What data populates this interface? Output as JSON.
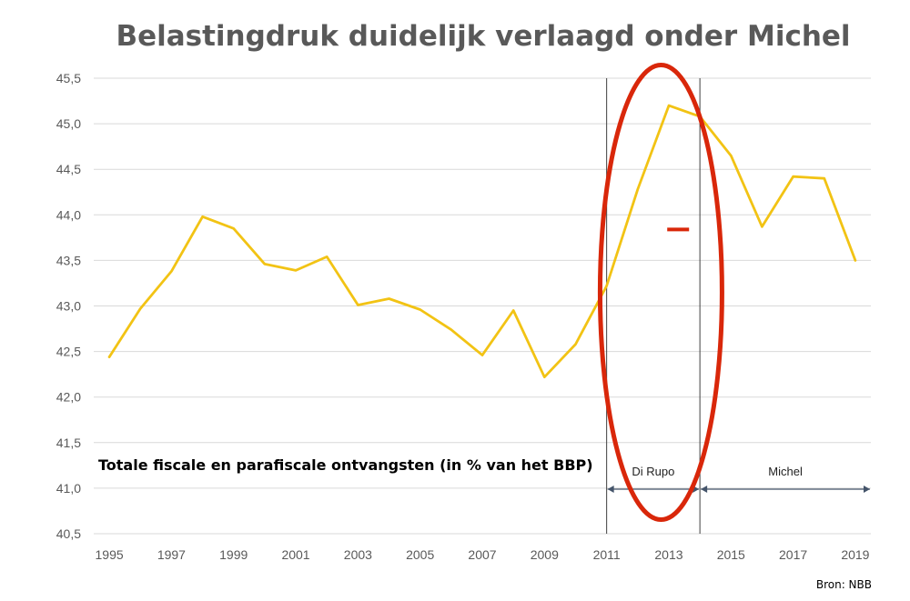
{
  "chart_data": {
    "type": "line",
    "title": "Belastingdruk duidelijk verlaagd onder Michel",
    "annotation": "Totale fiscale en parafiscale ontvangsten (in % van het BBP)",
    "source": "Bron: NBB",
    "xlabel": "",
    "ylabel": "",
    "ylim": [
      40.5,
      45.5
    ],
    "yticks": [
      "40,5",
      "41,0",
      "41,5",
      "42,0",
      "42,5",
      "43,0",
      "43,5",
      "44,0",
      "44,5",
      "45,0",
      "45,5"
    ],
    "xlim": [
      1995,
      2019
    ],
    "xticks": [
      "1995",
      "1997",
      "1999",
      "2001",
      "2003",
      "2005",
      "2007",
      "2009",
      "2011",
      "2013",
      "2015",
      "2017",
      "2019"
    ],
    "grid": true,
    "line_color": "#F2C314",
    "series": [
      {
        "x": [
          1995,
          1996,
          1997,
          1998,
          1999,
          2000,
          2001,
          2002,
          2003,
          2004,
          2005,
          2006,
          2007,
          2008,
          2009,
          2010,
          2011,
          2012,
          2013,
          2014,
          2015,
          2016,
          2017,
          2018,
          2019
        ],
        "values": [
          42.44,
          42.97,
          43.38,
          43.98,
          43.85,
          43.46,
          43.39,
          43.54,
          43.01,
          43.08,
          42.96,
          42.74,
          42.46,
          42.95,
          42.22,
          42.58,
          43.22,
          44.28,
          45.2,
          45.08,
          44.65,
          43.87,
          44.42,
          44.4,
          43.5
        ]
      }
    ],
    "periods": [
      {
        "label": "Di Rupo",
        "start": 2011,
        "end": 2014
      },
      {
        "label": "Michel",
        "start": 2014,
        "end": 2019.5
      }
    ],
    "highlight": {
      "shape": "ellipse",
      "color": "#D9270A",
      "center_x": 2012.75,
      "center_y": 43.15,
      "dash_color": "#D9270A",
      "dash_x": 2013.3,
      "dash_y": 43.84
    }
  }
}
